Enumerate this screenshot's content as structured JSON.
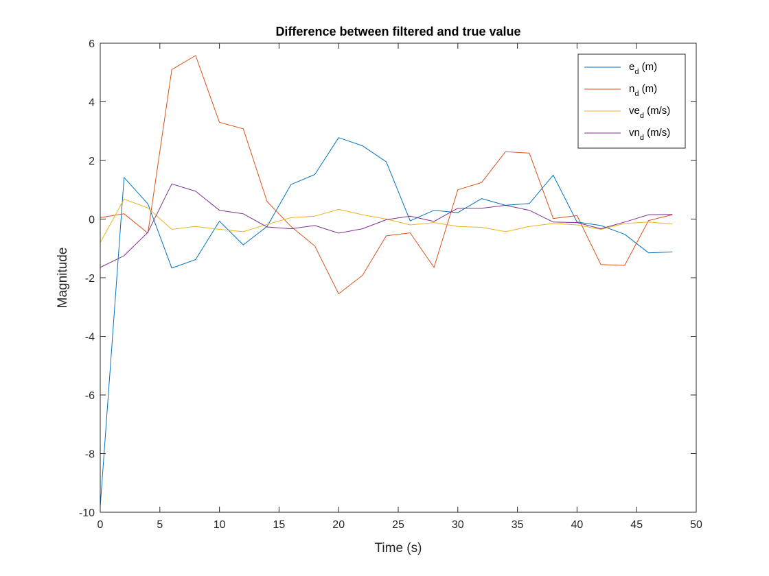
{
  "chart_data": {
    "type": "line",
    "title": "Difference between filtered and true value",
    "xlabel": "Time (s)",
    "ylabel": "Magnitude",
    "xlim": [
      0,
      50
    ],
    "ylim": [
      -10,
      6
    ],
    "xticks": [
      0,
      5,
      10,
      15,
      20,
      25,
      30,
      35,
      40,
      45,
      50
    ],
    "yticks": [
      -10,
      -8,
      -6,
      -4,
      -2,
      0,
      2,
      4,
      6
    ],
    "grid": false,
    "legend_position": "top-right",
    "x": [
      0,
      2,
      4,
      6,
      8,
      10,
      12,
      14,
      16,
      18,
      20,
      22,
      24,
      26,
      28,
      30,
      32,
      34,
      36,
      38,
      40,
      42,
      44,
      46,
      48
    ],
    "series": [
      {
        "name_base": "e",
        "name_sub": "d",
        "name_unit": " (m)",
        "color": "#0072BD",
        "values": [
          -9.8,
          1.42,
          0.52,
          -1.67,
          -1.38,
          -0.07,
          -0.88,
          -0.25,
          1.18,
          1.52,
          2.78,
          2.5,
          1.95,
          -0.06,
          0.3,
          0.22,
          0.7,
          0.47,
          0.53,
          1.5,
          -0.1,
          -0.22,
          -0.52,
          -1.15,
          -1.12
        ]
      },
      {
        "name_base": "n",
        "name_sub": "d",
        "name_unit": " (m)",
        "color": "#D95319",
        "values": [
          0.05,
          0.18,
          -0.48,
          5.1,
          5.58,
          3.3,
          3.08,
          0.6,
          -0.25,
          -0.92,
          -2.55,
          -1.92,
          -0.57,
          -0.47,
          -1.65,
          1.0,
          1.25,
          2.3,
          2.25,
          0.02,
          0.12,
          -1.55,
          -1.58,
          -0.05,
          0.15
        ]
      },
      {
        "name_base": "ve",
        "name_sub": "d",
        "name_unit": " (m/s)",
        "color": "#EDB120",
        "values": [
          -0.8,
          0.68,
          0.38,
          -0.35,
          -0.25,
          -0.35,
          -0.43,
          -0.18,
          0.05,
          0.1,
          0.33,
          0.15,
          0.0,
          -0.2,
          -0.12,
          -0.25,
          -0.28,
          -0.43,
          -0.25,
          -0.15,
          -0.2,
          -0.35,
          -0.15,
          -0.1,
          -0.17
        ]
      },
      {
        "name_base": "vn",
        "name_sub": "d",
        "name_unit": " (m/s)",
        "color": "#7E2F8E",
        "values": [
          -1.65,
          -1.25,
          -0.45,
          1.2,
          0.95,
          0.3,
          0.18,
          -0.27,
          -0.33,
          -0.22,
          -0.48,
          -0.33,
          -0.02,
          0.1,
          -0.08,
          0.37,
          0.37,
          0.47,
          0.3,
          -0.1,
          -0.12,
          -0.33,
          -0.1,
          0.15,
          0.16
        ]
      }
    ]
  }
}
